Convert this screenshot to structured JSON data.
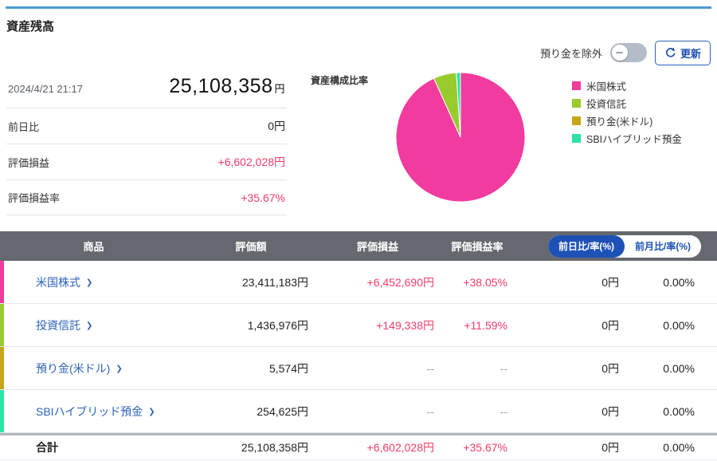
{
  "page": {
    "title": "資産残高"
  },
  "controls": {
    "exclude_toggle_label": "預り金を除外",
    "exclude_toggle_state": "off",
    "refresh_label": "更新"
  },
  "summary": {
    "timestamp": "2024/4/21 21:17",
    "total_value": "25,108,358",
    "total_unit": "円",
    "rows": [
      {
        "label": "前日比",
        "value": "0円",
        "tone": "default"
      },
      {
        "label": "評価損益",
        "value": "+6,602,028円",
        "tone": "gain"
      },
      {
        "label": "評価損益率",
        "value": "+35.67%",
        "tone": "gain"
      }
    ]
  },
  "chart_data": {
    "type": "pie",
    "title": "資産構成比率",
    "labels": [
      "米国株式",
      "投資信託",
      "預り金(米ドル)",
      "SBIハイブリッド預金"
    ],
    "values": [
      23411183,
      1436976,
      5574,
      254625
    ],
    "percentages": [
      93.24,
      5.72,
      0.02,
      1.01
    ],
    "colors": [
      "#f13b9e",
      "#99cb2f",
      "#c8a518",
      "#2ce3a5"
    ],
    "legend_position": "right",
    "start_angle_deg": 0,
    "direction": "clockwise"
  },
  "table": {
    "headers": [
      "商品",
      "評価額",
      "評価損益",
      "評価損益率"
    ],
    "toggle_buttons": [
      {
        "label": "前日比/率(%)",
        "active": true
      },
      {
        "label": "前月比/率(%)",
        "active": false
      }
    ],
    "rows": [
      {
        "name": "米国株式",
        "bar_color": "#f13b9e",
        "value": "23,411,183円",
        "gain": "+6,452,690円",
        "gain_rate": "+38.05%",
        "day_change": "0円",
        "day_rate": "0.00%",
        "tone": "gain"
      },
      {
        "name": "投資信託",
        "bar_color": "#99cb2f",
        "value": "1,436,976円",
        "gain": "+149,338円",
        "gain_rate": "+11.59%",
        "day_change": "0円",
        "day_rate": "0.00%",
        "tone": "gain"
      },
      {
        "name": "預り金(米ドル)",
        "bar_color": "#c8a518",
        "value": "5,574円",
        "gain": "--",
        "gain_rate": "--",
        "day_change": "0円",
        "day_rate": "0.00%",
        "tone": "muted"
      },
      {
        "name": "SBIハイブリッド預金",
        "bar_color": "#2ce3a5",
        "value": "254,625円",
        "gain": "--",
        "gain_rate": "--",
        "day_change": "0円",
        "day_rate": "0.00%",
        "tone": "muted"
      }
    ],
    "total": {
      "name": "合計",
      "value": "25,108,358円",
      "gain": "+6,602,028円",
      "gain_rate": "+35.67%",
      "day_change": "0円",
      "day_rate": "0.00%",
      "tone": "gain"
    }
  },
  "colors": {
    "accent_line": "#4a9ad5",
    "link_blue": "#2e63b8",
    "pill_blue": "#1d51b5",
    "gain_pink": "#f23b69",
    "header_gray": "#65686f"
  }
}
